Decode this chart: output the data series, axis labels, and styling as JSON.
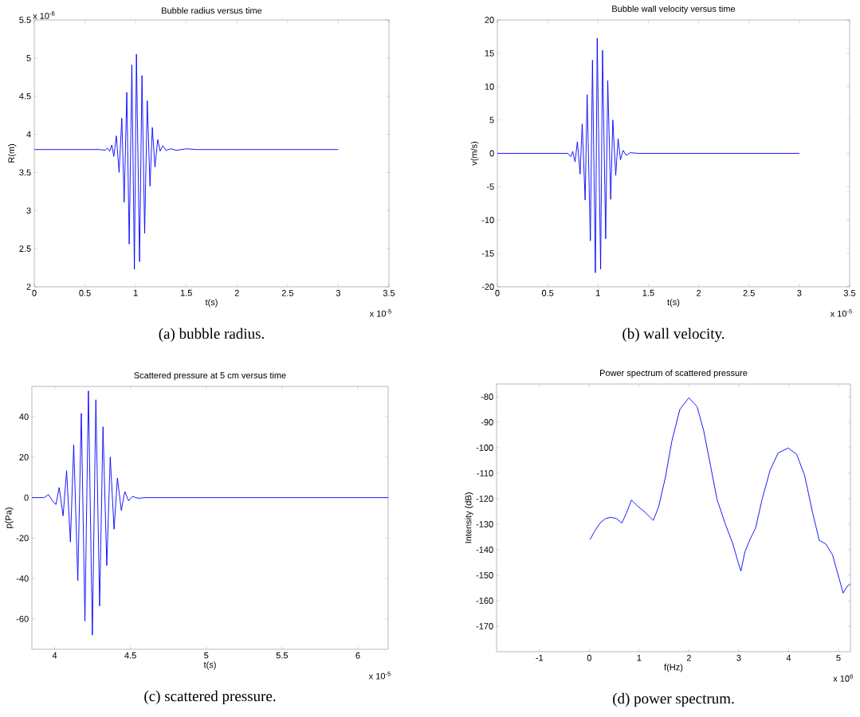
{
  "chart_data": [
    {
      "type": "line",
      "title": "Bubble radius versus time",
      "xlabel": "t(s)",
      "ylabel": "R(m)",
      "annotations": [
        "(a) bubble radius.",
        "x 10$^{-6}$",
        "x 10$^{-5}$"
      ],
      "color": "#0000ff",
      "xlim": [
        0,
        3.5
      ],
      "ylim": [
        2,
        5.5
      ],
      "xticks": [
        0,
        0.5,
        1,
        1.5,
        2,
        2.5,
        3,
        3.5
      ],
      "yticks": [
        2,
        2.5,
        3,
        3.5,
        4,
        4.5,
        5,
        5.5
      ],
      "x": [
        0,
        0.65,
        0.7,
        0.72,
        0.745,
        0.765,
        0.785,
        0.81,
        0.837,
        0.864,
        0.887,
        0.913,
        0.937,
        0.963,
        0.988,
        1.008,
        1.039,
        1.063,
        1.089,
        1.115,
        1.142,
        1.165,
        1.191,
        1.218,
        1.242,
        1.268,
        1.3,
        1.35,
        1.4,
        1.5,
        1.6,
        3.0
      ],
      "values": [
        3.8,
        3.8,
        3.79,
        3.82,
        3.78,
        3.86,
        3.71,
        3.98,
        3.5,
        4.21,
        3.11,
        4.55,
        2.56,
        4.91,
        2.23,
        5.05,
        2.33,
        4.77,
        2.7,
        4.44,
        3.32,
        4.09,
        3.57,
        3.93,
        3.78,
        3.85,
        3.79,
        3.81,
        3.79,
        3.81,
        3.8,
        3.8
      ]
    },
    {
      "type": "line",
      "title": "Bubble wall velocity versus time",
      "xlabel": "t(s)",
      "ylabel": "v(m/s)",
      "annotations": [
        "(b) wall velocity.",
        "x 10$^{-5}$"
      ],
      "color": "#0000ff",
      "xlim": [
        0,
        3.5
      ],
      "ylim": [
        -20,
        20
      ],
      "xticks": [
        0,
        0.5,
        1,
        1.5,
        2,
        2.5,
        3,
        3.5
      ],
      "yticks": [
        -20,
        -15,
        -10,
        -5,
        0,
        5,
        10,
        15,
        20
      ],
      "x": [
        0,
        0.7,
        0.73,
        0.749,
        0.772,
        0.795,
        0.822,
        0.843,
        0.872,
        0.892,
        0.924,
        0.945,
        0.974,
        0.992,
        1.026,
        1.045,
        1.076,
        1.097,
        1.126,
        1.147,
        1.176,
        1.2,
        1.223,
        1.25,
        1.28,
        1.32,
        1.4,
        3.0
      ],
      "values": [
        0,
        0,
        -0.5,
        0.3,
        -1.27,
        1.75,
        -3.1,
        4.42,
        -7.0,
        8.8,
        -13.1,
        13.97,
        -17.9,
        17.27,
        -17.35,
        15.44,
        -12.8,
        10.9,
        -6.9,
        5.0,
        -3.3,
        2.2,
        -0.96,
        0.45,
        -0.3,
        0.1,
        0,
        0
      ]
    },
    {
      "type": "line",
      "title": "Scattered pressure at 5 cm versus time",
      "xlabel": "t(s)",
      "ylabel": "p(Pa)",
      "annotations": [
        "(c) scattered pressure.",
        "x 10$^{-5}$"
      ],
      "color": "#0000ff",
      "xlim": [
        3.85,
        6.2
      ],
      "ylim": [
        -75,
        55
      ],
      "xticks": [
        4,
        4.5,
        5,
        5.5,
        6
      ],
      "yticks": [
        -60,
        -40,
        -20,
        0,
        20,
        40
      ],
      "x": [
        3.85,
        3.93,
        3.96,
        3.985,
        4.009,
        4.03,
        4.056,
        4.079,
        4.104,
        4.126,
        4.153,
        4.176,
        4.2,
        4.223,
        4.249,
        4.272,
        4.297,
        4.319,
        4.344,
        4.367,
        4.392,
        4.414,
        4.44,
        4.463,
        4.488,
        4.513,
        4.55,
        4.6,
        6.2
      ],
      "values": [
        0,
        0,
        1.5,
        -1.5,
        -3.4,
        5.0,
        -9.0,
        13.3,
        -21.9,
        26.1,
        -41.0,
        41.7,
        -61.0,
        52.8,
        -68,
        48.4,
        -53.6,
        35.0,
        -33.6,
        20.1,
        -15.6,
        9.7,
        -6.3,
        3.0,
        -1.6,
        0.6,
        -0.3,
        0,
        0
      ]
    },
    {
      "type": "line",
      "title": "Power spectrum of scattered pressure",
      "xlabel": "f(Hz)",
      "ylabel": "Intensity (dB)",
      "annotations": [
        "(d) power spectrum.",
        "x 10$^{6}$"
      ],
      "color": "#0000ff",
      "xlim": [
        -1.86,
        5.24
      ],
      "ylim": [
        -180,
        -75
      ],
      "xticks": [
        -1,
        0,
        1,
        2,
        3,
        4,
        5
      ],
      "yticks": [
        -170,
        -160,
        -150,
        -140,
        -130,
        -120,
        -110,
        -100,
        -90,
        -80
      ],
      "x": [
        0.016,
        0.112,
        0.218,
        0.325,
        0.432,
        0.538,
        0.655,
        0.751,
        0.847,
        0.964,
        1.124,
        1.284,
        1.39,
        1.524,
        1.657,
        1.817,
        1.998,
        2.163,
        2.296,
        2.429,
        2.563,
        2.722,
        2.882,
        2.989,
        3.042,
        3.122,
        3.229,
        3.335,
        3.468,
        3.628,
        3.788,
        3.99,
        4.161,
        4.321,
        4.48,
        4.614,
        4.747,
        4.88,
        5.013,
        5.093,
        5.173,
        5.237
      ],
      "values": [
        -136.0,
        -132.6,
        -129.5,
        -127.8,
        -127.3,
        -127.7,
        -129.5,
        -125.4,
        -120.5,
        -122.8,
        -125.4,
        -128.5,
        -123.3,
        -111.9,
        -97.4,
        -85.0,
        -80.4,
        -83.9,
        -93.3,
        -106.7,
        -120.2,
        -129.5,
        -137.8,
        -145.1,
        -148.4,
        -140.9,
        -135.8,
        -131.6,
        -120.2,
        -108.8,
        -102.1,
        -100.1,
        -102.6,
        -110.9,
        -125.4,
        -136.3,
        -137.8,
        -142.0,
        -151.3,
        -157.0,
        -154.4,
        -153.4
      ]
    }
  ]
}
